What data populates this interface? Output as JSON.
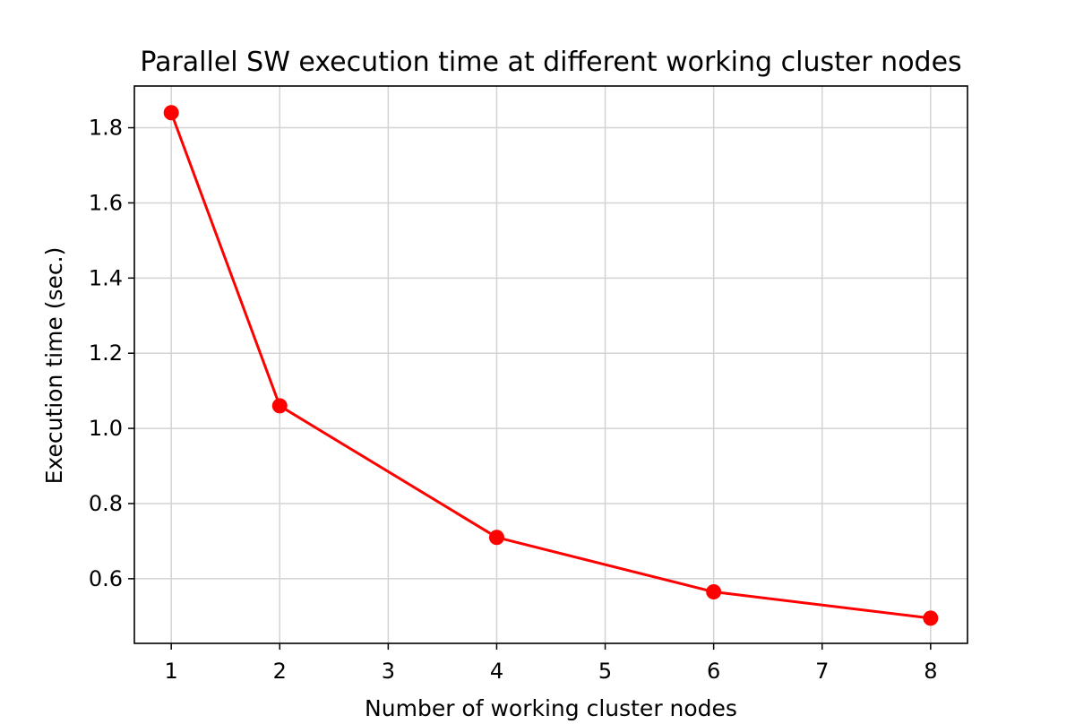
{
  "chart_data": {
    "type": "line",
    "title": "Parallel SW execution time at different working cluster nodes",
    "xlabel": "Number of working cluster nodes",
    "ylabel": "Execution time (sec.)",
    "xlim": [
      0.66,
      8.34
    ],
    "ylim": [
      0.428,
      1.911
    ],
    "xticks": [
      1,
      2,
      3,
      4,
      5,
      6,
      7,
      8
    ],
    "yticks": [
      0.6,
      0.8,
      1.0,
      1.2,
      1.4,
      1.6,
      1.8
    ],
    "ytick_labels": [
      "0.6",
      "0.8",
      "1.0",
      "1.2",
      "1.4",
      "1.6",
      "1.8"
    ],
    "grid": true,
    "series": [
      {
        "color": "#ff0000",
        "marker": "circle",
        "x": [
          1,
          2,
          4,
          6,
          8
        ],
        "y": [
          1.84,
          1.06,
          0.71,
          0.565,
          0.495
        ]
      }
    ]
  }
}
